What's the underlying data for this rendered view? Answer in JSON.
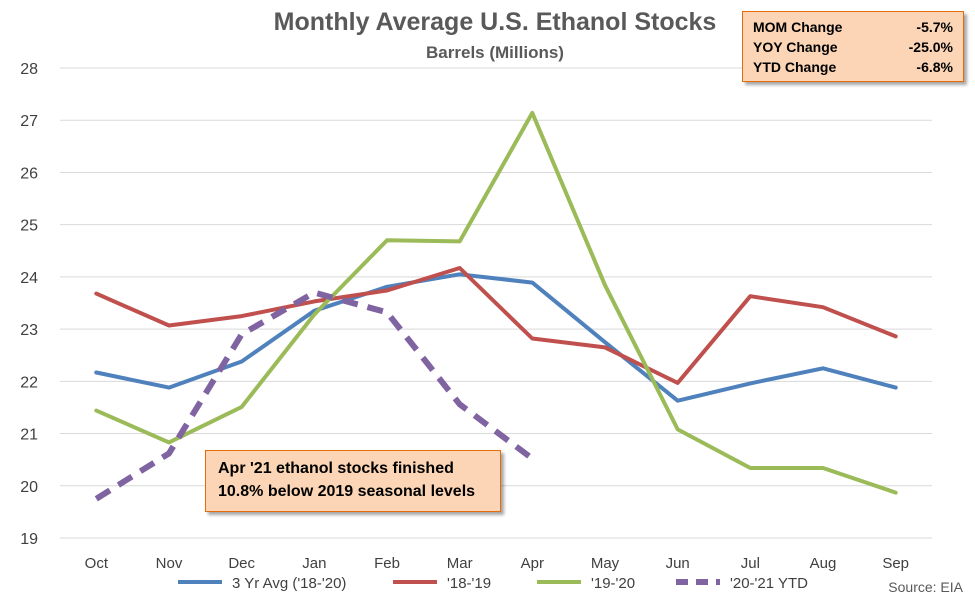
{
  "chart_data": {
    "type": "line",
    "title": "Monthly Average U.S. Ethanol Stocks",
    "subtitle": "Barrels (Millions)",
    "categories": [
      "Oct",
      "Nov",
      "Dec",
      "Jan",
      "Feb",
      "Mar",
      "Apr",
      "May",
      "Jun",
      "Jul",
      "Aug",
      "Sep"
    ],
    "ylim": [
      19,
      28
    ],
    "yticks": [
      19,
      20,
      21,
      22,
      23,
      24,
      25,
      26,
      27,
      28
    ],
    "grid": true,
    "legend_position": "bottom",
    "series": [
      {
        "name": "3 Yr Avg ('18-'20)",
        "color": "#4f81bd",
        "dashed": false,
        "values": [
          22.17,
          21.88,
          22.38,
          23.35,
          23.81,
          24.05,
          23.89,
          22.75,
          21.63,
          21.96,
          22.25,
          21.88
        ]
      },
      {
        "name": "'18-'19",
        "color": "#c0504d",
        "dashed": false,
        "values": [
          23.68,
          23.07,
          23.25,
          23.53,
          23.74,
          24.17,
          22.82,
          22.65,
          21.97,
          23.63,
          23.42,
          22.86
        ]
      },
      {
        "name": "'19-'20",
        "color": "#9bbb59",
        "dashed": false,
        "values": [
          21.44,
          20.83,
          21.51,
          23.28,
          24.7,
          24.68,
          27.14,
          23.84,
          21.08,
          20.34,
          20.34,
          19.87
        ]
      },
      {
        "name": "'20-'21 YTD",
        "color": "#8064a2",
        "dashed": true,
        "values": [
          19.75,
          20.62,
          22.9,
          23.7,
          23.32,
          21.56,
          20.52,
          null,
          null,
          null,
          null,
          null
        ]
      }
    ]
  },
  "stats_box": {
    "rows": [
      {
        "label": "MOM Change",
        "value": "-5.7%"
      },
      {
        "label": "YOY Change",
        "value": "-25.0%"
      },
      {
        "label": "YTD Change",
        "value": "-6.8%"
      }
    ]
  },
  "annotation": {
    "line1": "Apr '21 ethanol stocks finished",
    "line2": "10.8% below 2019 seasonal levels"
  },
  "source": "Source: EIA"
}
